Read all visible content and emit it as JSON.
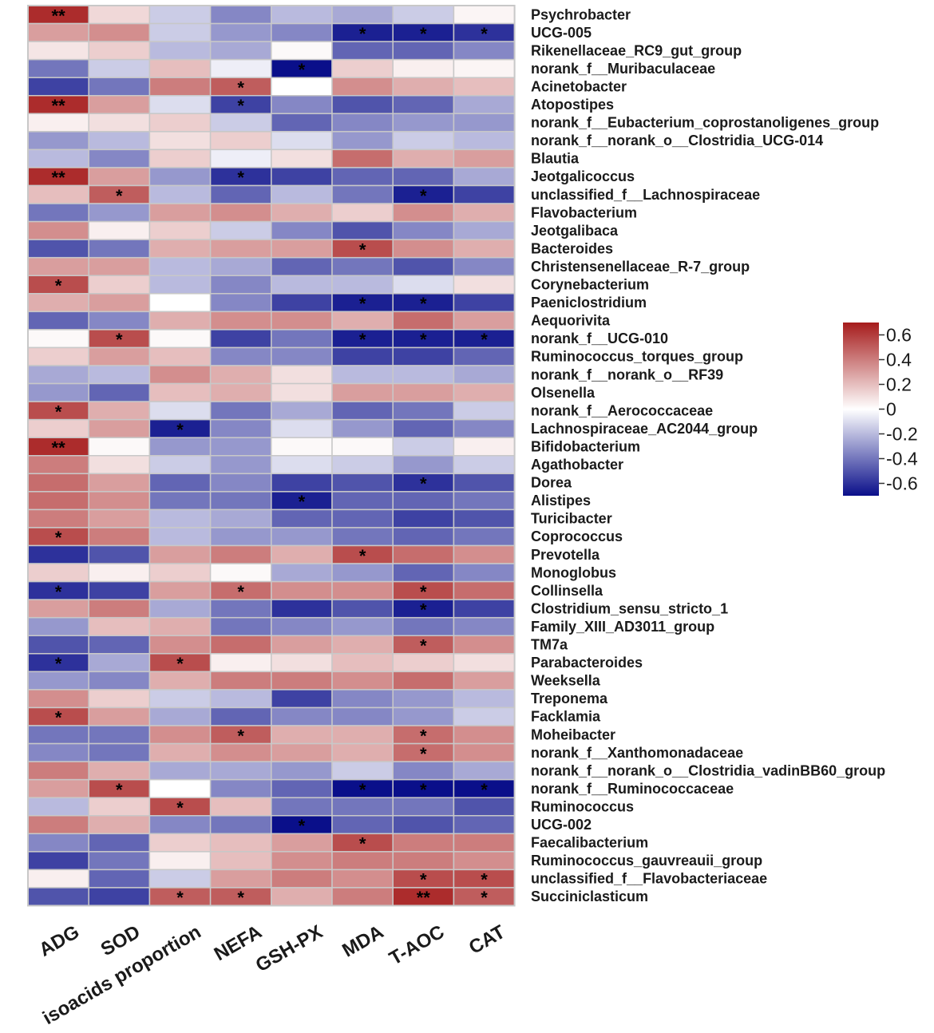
{
  "chart_data": {
    "type": "heatmap",
    "title": "",
    "xlabel": "",
    "ylabel": "",
    "columns": [
      "ADG",
      "SOD",
      "isoacids proportion",
      "NEFA",
      "GSH-PX",
      "MDA",
      "T-AOC",
      "CAT"
    ],
    "rows": [
      "Psychrobacter",
      "UCG-005",
      "Rikenellaceae_RC9_gut_group",
      "norank_f__Muribaculaceae",
      "Acinetobacter",
      "Atopostipes",
      "norank_f__Eubacterium_coprostanoligenes_group",
      "norank_f__norank_o__Clostridia_UCG-014",
      "Blautia",
      "Jeotgalicoccus",
      "unclassified_f__Lachnospiraceae",
      "Flavobacterium",
      "Jeotgalibaca",
      "Bacteroides",
      "Christensenellaceae_R-7_group",
      "Corynebacterium",
      "Paeniclostridium",
      "Aequorivita",
      "norank_f__UCG-010",
      "Ruminococcus_torques_group",
      "norank_f__norank_o__RF39",
      "Olsenella",
      "norank_f__Aerococcaceae",
      "Lachnospiraceae_AC2044_group",
      "Bifidobacterium",
      "Agathobacter",
      "Dorea",
      "Alistipes",
      "Turicibacter",
      "Coprococcus",
      "Prevotella",
      "Monoglobus",
      "Collinsella",
      "Clostridium_sensu_stricto_1",
      "Family_XIII_AD3011_group",
      "TM7a",
      "Parabacteroides",
      "Weeksella",
      "Treponema",
      "Facklamia",
      "Moheibacter",
      "norank_f__Xanthomonadaceae",
      "norank_f__norank_o__Clostridia_vadinBB60_group",
      "norank_f__Ruminococcaceae",
      "Ruminococcus",
      "UCG-002",
      "Faecalibacterium",
      "Ruminococcus_gauvreauii_group",
      "unclassified_f__Flavobacteriaceae",
      "Succiniclasticum"
    ],
    "values": [
      [
        0.65,
        0.12,
        -0.15,
        -0.35,
        -0.2,
        -0.25,
        -0.15,
        0.03
      ],
      [
        0.3,
        0.35,
        -0.15,
        -0.3,
        -0.35,
        -0.65,
        -0.65,
        -0.6
      ],
      [
        0.08,
        0.15,
        -0.2,
        -0.25,
        0.02,
        -0.45,
        -0.45,
        -0.35
      ],
      [
        -0.4,
        -0.15,
        0.2,
        -0.05,
        -0.7,
        0.15,
        0.05,
        0.03
      ],
      [
        -0.55,
        -0.4,
        0.4,
        0.5,
        0.0,
        0.35,
        0.25,
        0.2
      ],
      [
        0.65,
        0.3,
        -0.1,
        -0.55,
        -0.35,
        -0.5,
        -0.45,
        -0.25
      ],
      [
        0.05,
        0.1,
        0.15,
        -0.15,
        -0.45,
        -0.35,
        -0.3,
        -0.3
      ],
      [
        -0.3,
        -0.2,
        0.1,
        0.15,
        -0.1,
        -0.3,
        -0.15,
        -0.2
      ],
      [
        -0.2,
        -0.35,
        0.15,
        -0.05,
        0.1,
        0.45,
        0.25,
        0.3
      ],
      [
        0.65,
        0.3,
        -0.3,
        -0.6,
        -0.55,
        -0.45,
        -0.45,
        -0.25
      ],
      [
        0.2,
        0.5,
        -0.2,
        -0.45,
        -0.2,
        -0.4,
        -0.65,
        -0.55
      ],
      [
        -0.4,
        -0.3,
        0.3,
        0.35,
        0.25,
        0.15,
        0.35,
        0.25
      ],
      [
        0.35,
        0.05,
        0.15,
        -0.15,
        -0.35,
        -0.5,
        -0.35,
        -0.25
      ],
      [
        -0.5,
        -0.4,
        0.25,
        0.3,
        0.3,
        0.55,
        0.35,
        0.25
      ],
      [
        0.3,
        0.3,
        -0.2,
        -0.25,
        -0.45,
        -0.4,
        -0.5,
        -0.35
      ],
      [
        0.55,
        0.15,
        -0.2,
        -0.35,
        -0.2,
        -0.2,
        -0.1,
        0.1
      ],
      [
        0.25,
        0.3,
        0.0,
        -0.35,
        -0.55,
        -0.65,
        -0.65,
        -0.55
      ],
      [
        -0.45,
        -0.35,
        0.25,
        0.35,
        0.35,
        0.25,
        0.45,
        0.3
      ],
      [
        0.02,
        0.55,
        0.02,
        -0.55,
        -0.4,
        -0.65,
        -0.65,
        -0.65
      ],
      [
        0.15,
        0.3,
        0.2,
        -0.35,
        -0.35,
        -0.55,
        -0.55,
        -0.45
      ],
      [
        -0.25,
        -0.2,
        0.35,
        0.25,
        0.1,
        -0.2,
        -0.2,
        -0.25
      ],
      [
        -0.3,
        -0.45,
        0.2,
        0.25,
        0.1,
        0.3,
        0.3,
        0.25
      ],
      [
        0.55,
        0.25,
        -0.1,
        -0.4,
        -0.25,
        -0.45,
        -0.4,
        -0.15
      ],
      [
        0.15,
        0.3,
        -0.65,
        -0.35,
        -0.1,
        -0.3,
        -0.45,
        -0.35
      ],
      [
        0.65,
        0.02,
        -0.3,
        -0.3,
        0.02,
        0.02,
        -0.15,
        0.05
      ],
      [
        0.4,
        0.1,
        -0.15,
        -0.3,
        -0.1,
        -0.15,
        -0.3,
        -0.15
      ],
      [
        0.45,
        0.3,
        -0.45,
        -0.35,
        -0.55,
        -0.5,
        -0.6,
        -0.5
      ],
      [
        0.45,
        0.35,
        -0.4,
        -0.4,
        -0.65,
        -0.45,
        -0.45,
        -0.4
      ],
      [
        0.4,
        0.3,
        -0.2,
        -0.25,
        -0.45,
        -0.45,
        -0.55,
        -0.5
      ],
      [
        0.55,
        0.4,
        -0.2,
        -0.3,
        -0.3,
        -0.4,
        -0.45,
        -0.4
      ],
      [
        -0.6,
        -0.5,
        0.3,
        0.4,
        0.25,
        0.55,
        0.45,
        0.35
      ],
      [
        0.15,
        0.05,
        0.15,
        0.02,
        -0.25,
        -0.3,
        -0.45,
        -0.35
      ],
      [
        -0.6,
        -0.55,
        0.3,
        0.45,
        0.35,
        0.35,
        0.55,
        0.45
      ],
      [
        0.3,
        0.4,
        -0.25,
        -0.4,
        -0.6,
        -0.5,
        -0.65,
        -0.55
      ],
      [
        -0.3,
        0.2,
        0.25,
        -0.4,
        -0.35,
        -0.3,
        -0.4,
        -0.35
      ],
      [
        -0.5,
        -0.45,
        0.35,
        0.45,
        0.3,
        0.25,
        0.5,
        0.35
      ],
      [
        -0.6,
        -0.25,
        0.55,
        0.05,
        0.1,
        0.2,
        0.15,
        0.1
      ],
      [
        -0.3,
        -0.35,
        0.25,
        0.4,
        0.4,
        0.35,
        0.45,
        0.3
      ],
      [
        0.35,
        0.15,
        -0.15,
        -0.2,
        -0.55,
        -0.35,
        -0.3,
        -0.2
      ],
      [
        0.55,
        0.3,
        -0.25,
        -0.45,
        -0.35,
        -0.35,
        -0.3,
        -0.15
      ],
      [
        -0.4,
        -0.4,
        0.35,
        0.5,
        0.25,
        0.25,
        0.45,
        0.35
      ],
      [
        -0.35,
        -0.4,
        0.25,
        0.35,
        0.3,
        0.25,
        0.45,
        0.35
      ],
      [
        0.4,
        0.25,
        -0.25,
        -0.25,
        -0.3,
        -0.15,
        -0.35,
        -0.25
      ],
      [
        0.3,
        0.55,
        0.0,
        -0.35,
        -0.45,
        -0.7,
        -0.7,
        -0.7
      ],
      [
        -0.2,
        0.15,
        0.55,
        0.2,
        -0.4,
        -0.4,
        -0.4,
        -0.5
      ],
      [
        0.4,
        0.25,
        -0.35,
        -0.4,
        -0.7,
        -0.45,
        -0.5,
        -0.45
      ],
      [
        -0.35,
        -0.45,
        0.15,
        0.2,
        0.3,
        0.55,
        0.4,
        0.4
      ],
      [
        -0.55,
        -0.4,
        0.05,
        0.2,
        0.35,
        0.4,
        0.4,
        0.35
      ],
      [
        0.05,
        -0.45,
        -0.15,
        0.3,
        0.4,
        0.35,
        0.55,
        0.55
      ],
      [
        -0.5,
        -0.55,
        0.5,
        0.5,
        0.25,
        0.4,
        0.65,
        0.5
      ]
    ],
    "significance": [
      [
        "**",
        "",
        "",
        "",
        "",
        "",
        "",
        ""
      ],
      [
        "",
        "",
        "",
        "",
        "",
        "*",
        "*",
        "*"
      ],
      [
        "",
        "",
        "",
        "",
        "",
        "",
        "",
        ""
      ],
      [
        "",
        "",
        "",
        "",
        "*",
        "",
        "",
        ""
      ],
      [
        "",
        "",
        "",
        "*",
        "",
        "",
        "",
        ""
      ],
      [
        "**",
        "",
        "",
        "*",
        "",
        "",
        "",
        ""
      ],
      [
        "",
        "",
        "",
        "",
        "",
        "",
        "",
        ""
      ],
      [
        "",
        "",
        "",
        "",
        "",
        "",
        "",
        ""
      ],
      [
        "",
        "",
        "",
        "",
        "",
        "",
        "",
        ""
      ],
      [
        "**",
        "",
        "",
        "*",
        "",
        "",
        "",
        ""
      ],
      [
        "",
        "*",
        "",
        "",
        "",
        "",
        "*",
        ""
      ],
      [
        "",
        "",
        "",
        "",
        "",
        "",
        "",
        ""
      ],
      [
        "",
        "",
        "",
        "",
        "",
        "",
        "",
        ""
      ],
      [
        "",
        "",
        "",
        "",
        "",
        "*",
        "",
        ""
      ],
      [
        "",
        "",
        "",
        "",
        "",
        "",
        "",
        ""
      ],
      [
        "*",
        "",
        "",
        "",
        "",
        "",
        "",
        ""
      ],
      [
        "",
        "",
        "",
        "",
        "",
        "*",
        "*",
        ""
      ],
      [
        "",
        "",
        "",
        "",
        "",
        "",
        "",
        ""
      ],
      [
        "",
        "*",
        "",
        "",
        "",
        "*",
        "*",
        "*"
      ],
      [
        "",
        "",
        "",
        "",
        "",
        "",
        "",
        ""
      ],
      [
        "",
        "",
        "",
        "",
        "",
        "",
        "",
        ""
      ],
      [
        "",
        "",
        "",
        "",
        "",
        "",
        "",
        ""
      ],
      [
        "*",
        "",
        "",
        "",
        "",
        "",
        "",
        ""
      ],
      [
        "",
        "",
        "*",
        "",
        "",
        "",
        "",
        ""
      ],
      [
        "**",
        "",
        "",
        "",
        "",
        "",
        "",
        ""
      ],
      [
        "",
        "",
        "",
        "",
        "",
        "",
        "",
        ""
      ],
      [
        "",
        "",
        "",
        "",
        "",
        "",
        "*",
        ""
      ],
      [
        "",
        "",
        "",
        "",
        "*",
        "",
        "",
        ""
      ],
      [
        "",
        "",
        "",
        "",
        "",
        "",
        "",
        ""
      ],
      [
        "*",
        "",
        "",
        "",
        "",
        "",
        "",
        ""
      ],
      [
        "",
        "",
        "",
        "",
        "",
        "*",
        "",
        ""
      ],
      [
        "",
        "",
        "",
        "",
        "",
        "",
        "",
        ""
      ],
      [
        "*",
        "",
        "",
        "*",
        "",
        "",
        "*",
        ""
      ],
      [
        "",
        "",
        "",
        "",
        "",
        "",
        "*",
        ""
      ],
      [
        "",
        "",
        "",
        "",
        "",
        "",
        "",
        ""
      ],
      [
        "",
        "",
        "",
        "",
        "",
        "",
        "*",
        ""
      ],
      [
        "*",
        "",
        "*",
        "",
        "",
        "",
        "",
        ""
      ],
      [
        "",
        "",
        "",
        "",
        "",
        "",
        "",
        ""
      ],
      [
        "",
        "",
        "",
        "",
        "",
        "",
        "",
        ""
      ],
      [
        "*",
        "",
        "",
        "",
        "",
        "",
        "",
        ""
      ],
      [
        "",
        "",
        "",
        "*",
        "",
        "",
        "*",
        ""
      ],
      [
        "",
        "",
        "",
        "",
        "",
        "",
        "*",
        ""
      ],
      [
        "",
        "",
        "",
        "",
        "",
        "",
        "",
        ""
      ],
      [
        "",
        "*",
        "",
        "",
        "",
        "*",
        "*",
        "*"
      ],
      [
        "",
        "",
        "*",
        "",
        "",
        "",
        "",
        ""
      ],
      [
        "",
        "",
        "",
        "",
        "*",
        "",
        "",
        ""
      ],
      [
        "",
        "",
        "",
        "",
        "",
        "*",
        "",
        ""
      ],
      [
        "",
        "",
        "",
        "",
        "",
        "",
        "",
        ""
      ],
      [
        "",
        "",
        "",
        "",
        "",
        "",
        "*",
        "*"
      ],
      [
        "",
        "",
        "*",
        "*",
        "",
        "",
        "**",
        "*"
      ]
    ],
    "colorscale": {
      "low": "#0a0f8a",
      "mid": "#ffffff",
      "high": "#a61c1c",
      "range": [
        -0.7,
        0.7
      ],
      "ticks": [
        0.6,
        0.4,
        0.2,
        0,
        -0.2,
        -0.4,
        -0.6
      ],
      "tick_labels": [
        "0.6",
        "0.4",
        "0.2",
        "0",
        "-0.2",
        "-0.4",
        "-0.6"
      ]
    },
    "grid_color": "#c8c8c8"
  }
}
